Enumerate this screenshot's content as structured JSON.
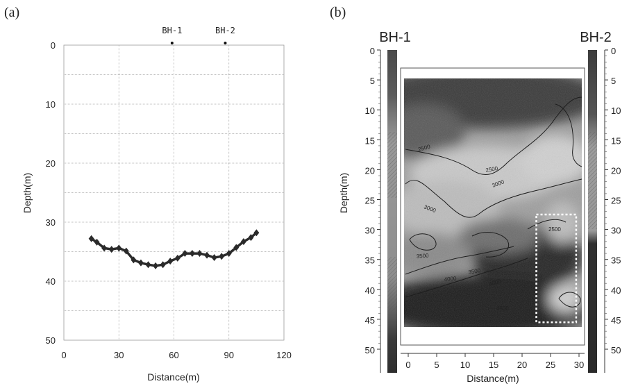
{
  "chart_data": [
    {
      "panel_label": "(a)",
      "type": "line",
      "xlabel": "Distance(m)",
      "ylabel": "Depth(m)",
      "xlim": [
        0,
        120
      ],
      "ylim": [
        0,
        50
      ],
      "y_inverted": true,
      "x_ticks": [
        "0",
        "30",
        "60",
        "90",
        "120"
      ],
      "y_ticks": [
        "0",
        "10",
        "20",
        "30",
        "40",
        "50"
      ],
      "grid": true,
      "boreholes": [
        {
          "name": "BH-1",
          "x": 59
        },
        {
          "name": "BH-2",
          "x": 88
        }
      ],
      "series": [
        {
          "x": [
            15,
            18,
            22,
            26,
            30,
            34,
            38,
            42,
            46,
            50,
            54,
            58,
            62,
            66,
            70,
            74,
            78,
            82,
            86,
            90,
            94,
            98,
            102,
            105
          ],
          "y": [
            32.8,
            33.4,
            34.4,
            34.6,
            34.4,
            34.9,
            36.4,
            36.9,
            37.2,
            37.4,
            37.2,
            36.6,
            36.1,
            35.3,
            35.3,
            35.3,
            35.6,
            36.0,
            35.8,
            35.3,
            34.3,
            33.3,
            32.6,
            31.8
          ]
        }
      ]
    },
    {
      "panel_label": "(b)",
      "type": "heatmap",
      "xlabel": "Distance(m)",
      "ylabel": "Depth(m)",
      "xlim": [
        -1.5,
        31.5
      ],
      "ylim": [
        0,
        50
      ],
      "y_inverted": true,
      "x_ticks": [
        "0",
        "5",
        "10",
        "15",
        "20",
        "25",
        "30"
      ],
      "y_ticks": [
        "0",
        "5",
        "10",
        "15",
        "20",
        "25",
        "30",
        "35",
        "40",
        "45",
        "50"
      ],
      "borehole_labels": [
        "BH-1",
        "BH-2"
      ],
      "contour_labels": [
        "2500",
        "2500",
        "3000",
        "3000",
        "3500",
        "2500",
        "3500",
        "4000",
        "4000",
        "4500"
      ],
      "highlight_box": {
        "x": [
          22.5,
          29.5
        ],
        "y": [
          27.5,
          45.5
        ]
      },
      "tomogram_extent": {
        "x": [
          0,
          30
        ],
        "y": [
          5,
          46
        ]
      }
    }
  ]
}
